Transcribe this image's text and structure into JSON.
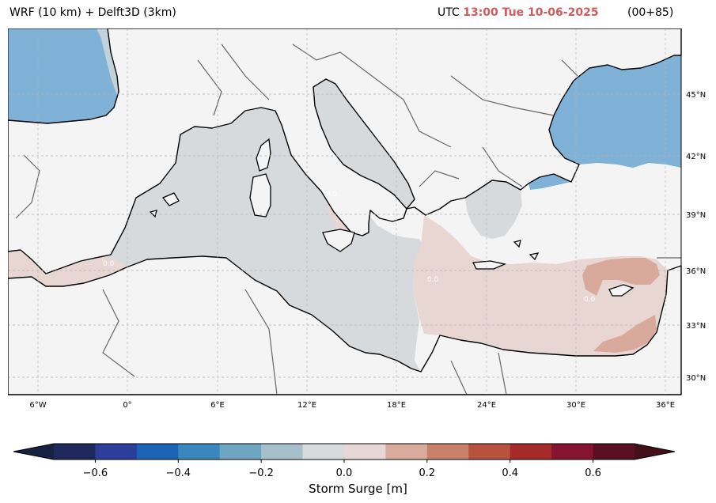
{
  "header": {
    "model": "WRF (10 km) + Delft3D (3km)",
    "utc_prefix": "UTC",
    "valid_time": "13:00 Tue 10-06-2025",
    "run_offset": "(00+85)"
  },
  "map": {
    "lon_labels": [
      "6°W",
      "0°",
      "6°E",
      "12°E",
      "18°E",
      "24°E",
      "30°E",
      "36°E"
    ],
    "lat_labels": [
      "45°N",
      "42°N",
      "39°N",
      "36°N",
      "33°N",
      "30°N"
    ],
    "contour_label": "0.0",
    "colors": {
      "land": "#f4f4f4",
      "sea_neutral": "#d7dadd",
      "sea_positive": "#e8d6d3",
      "sea_positive_strong": "#d9aa9b",
      "sea_negative": "#7fb2d6",
      "sea_negative_mid": "#9fbac8"
    }
  },
  "colorbar": {
    "title": "Storm Surge [m]",
    "ticks": [
      "−0.6",
      "−0.4",
      "−0.2",
      "0.0",
      "0.2",
      "0.4",
      "0.6"
    ],
    "colors": [
      "#1f2a5c",
      "#2c3e9a",
      "#1c63b6",
      "#3b87bd",
      "#6ea5c0",
      "#a6bfca",
      "#d8dbde",
      "#e7d8d5",
      "#d8ab9c",
      "#c9806a",
      "#b6523e",
      "#a52a2a",
      "#851430",
      "#5a1020"
    ],
    "under_color": "#16203f",
    "over_color": "#43101a"
  }
}
